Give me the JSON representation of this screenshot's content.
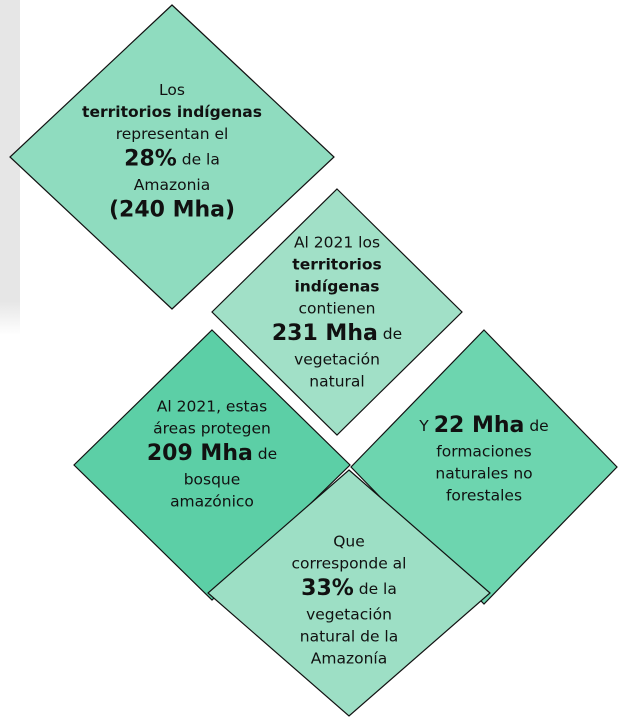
{
  "nodes": [
    {
      "color": "#8fdcbf",
      "lines": [
        [
          {
            "text": "Los",
            "weight": "normal"
          }
        ],
        [
          {
            "text": "territorios indígenas",
            "weight": "bold"
          }
        ],
        [
          {
            "text": "representan el",
            "weight": "normal"
          }
        ],
        [
          {
            "text": "28%",
            "weight": "large"
          },
          {
            "text": " de la",
            "weight": "normal"
          }
        ],
        [
          {
            "text": "Amazonia",
            "weight": "normal"
          }
        ],
        [
          {
            "text": "(240 Mha)",
            "weight": "large"
          }
        ]
      ]
    },
    {
      "color": "#a1e0c7",
      "lines": [
        [
          {
            "text": "Al 2021 los",
            "weight": "normal"
          }
        ],
        [
          {
            "text": "territorios",
            "weight": "bold"
          }
        ],
        [
          {
            "text": "indígenas",
            "weight": "bold"
          }
        ],
        [
          {
            "text": "contienen",
            "weight": "normal"
          }
        ],
        [
          {
            "text": "231 Mha",
            "weight": "large"
          },
          {
            "text": " de",
            "weight": "normal"
          }
        ],
        [
          {
            "text": "vegetación",
            "weight": "normal"
          }
        ],
        [
          {
            "text": "natural",
            "weight": "normal"
          }
        ]
      ]
    },
    {
      "color": "#5ccfa6",
      "lines": [
        [
          {
            "text": "Al 2021, estas",
            "weight": "normal"
          }
        ],
        [
          {
            "text": "áreas protegen",
            "weight": "normal"
          }
        ],
        [
          {
            "text": "209 Mha",
            "weight": "large"
          },
          {
            "text": " de",
            "weight": "normal"
          }
        ],
        [
          {
            "text": "bosque",
            "weight": "normal"
          }
        ],
        [
          {
            "text": "amazónico",
            "weight": "normal"
          }
        ]
      ]
    },
    {
      "color": "#6dd5af",
      "lines": [
        [
          {
            "text": "Y ",
            "weight": "normal"
          },
          {
            "text": "22 Mha",
            "weight": "large"
          },
          {
            "text": " de",
            "weight": "normal"
          }
        ],
        [
          {
            "text": "formaciones",
            "weight": "normal"
          }
        ],
        [
          {
            "text": "naturales no",
            "weight": "normal"
          }
        ],
        [
          {
            "text": "forestales",
            "weight": "normal"
          }
        ]
      ]
    },
    {
      "color": "#9ddfc5",
      "lines": [
        [
          {
            "text": "Que",
            "weight": "normal"
          }
        ],
        [
          {
            "text": "corresponde al",
            "weight": "normal"
          }
        ],
        [
          {
            "text": "33%",
            "weight": "large"
          },
          {
            "text": " de la",
            "weight": "normal"
          }
        ],
        [
          {
            "text": "vegetación",
            "weight": "normal"
          }
        ],
        [
          {
            "text": "natural de la",
            "weight": "normal"
          }
        ],
        [
          {
            "text": "Amazonía",
            "weight": "normal"
          }
        ]
      ]
    }
  ]
}
